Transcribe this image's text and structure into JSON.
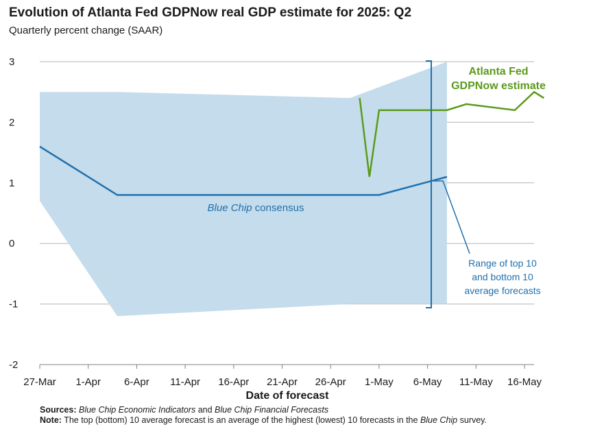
{
  "chart_data": {
    "type": "line",
    "title": "Evolution of Atlanta Fed GDPNow real GDP estimate for 2025: Q2",
    "subtitle": "Quarterly percent change (SAAR)",
    "xlabel": "Date of forecast",
    "ylabel": "",
    "ylim": [
      -2,
      3
    ],
    "yticks": [
      "3",
      "2",
      "1",
      "0",
      "-1",
      "-2"
    ],
    "xlim": [
      "2025-03-27",
      "2025-05-18"
    ],
    "xticks": [
      "27-Mar",
      "1-Apr",
      "6-Apr",
      "11-Apr",
      "16-Apr",
      "21-Apr",
      "26-Apr",
      "1-May",
      "6-May",
      "11-May",
      "16-May"
    ],
    "grid": true,
    "series": [
      {
        "name": "Blue Chip consensus",
        "color": "#1f6fad",
        "x": [
          "2025-03-27",
          "2025-04-04",
          "2025-05-01",
          "2025-05-08"
        ],
        "values": [
          1.6,
          0.8,
          0.8,
          1.1
        ]
      },
      {
        "name": "Atlanta Fed GDPNow estimate",
        "color": "#5a9a1a",
        "x": [
          "2025-04-29",
          "2025-04-30",
          "2025-05-01",
          "2025-05-08",
          "2025-05-10",
          "2025-05-15",
          "2025-05-17",
          "2025-05-18"
        ],
        "values": [
          2.4,
          1.1,
          2.2,
          2.2,
          2.3,
          2.2,
          2.5,
          2.4
        ]
      }
    ],
    "band": {
      "name": "Range of top 10 and bottom 10 average forecasts",
      "color": "#c5dcec",
      "x": [
        "2025-03-27",
        "2025-04-04",
        "2025-04-28",
        "2025-05-08"
      ],
      "upper": [
        2.5,
        2.5,
        2.4,
        3.0
      ],
      "lower": [
        0.7,
        -1.2,
        -1.0,
        -1.0
      ]
    },
    "annotations": {
      "gdpnow_line1": "Atlanta Fed",
      "gdpnow_line2": "GDPNow estimate",
      "bluechip_italic": "Blue Chip",
      "bluechip_rest": " consensus",
      "range_line1": "Range of top 10",
      "range_line2": "and bottom 10",
      "range_line3": "average forecasts"
    }
  },
  "footer": {
    "sources_label": "Sources:",
    "sources_part1": "Blue Chip Economic Indicators",
    "sources_and": " and ",
    "sources_part2": "Blue Chip Financial Forecasts",
    "note_label": "Note:",
    "note_text": " The top (bottom) 10 average forecast is an average of the highest (lowest) 10 forecasts in the ",
    "note_italic": "Blue Chip",
    "note_end": " survey."
  }
}
